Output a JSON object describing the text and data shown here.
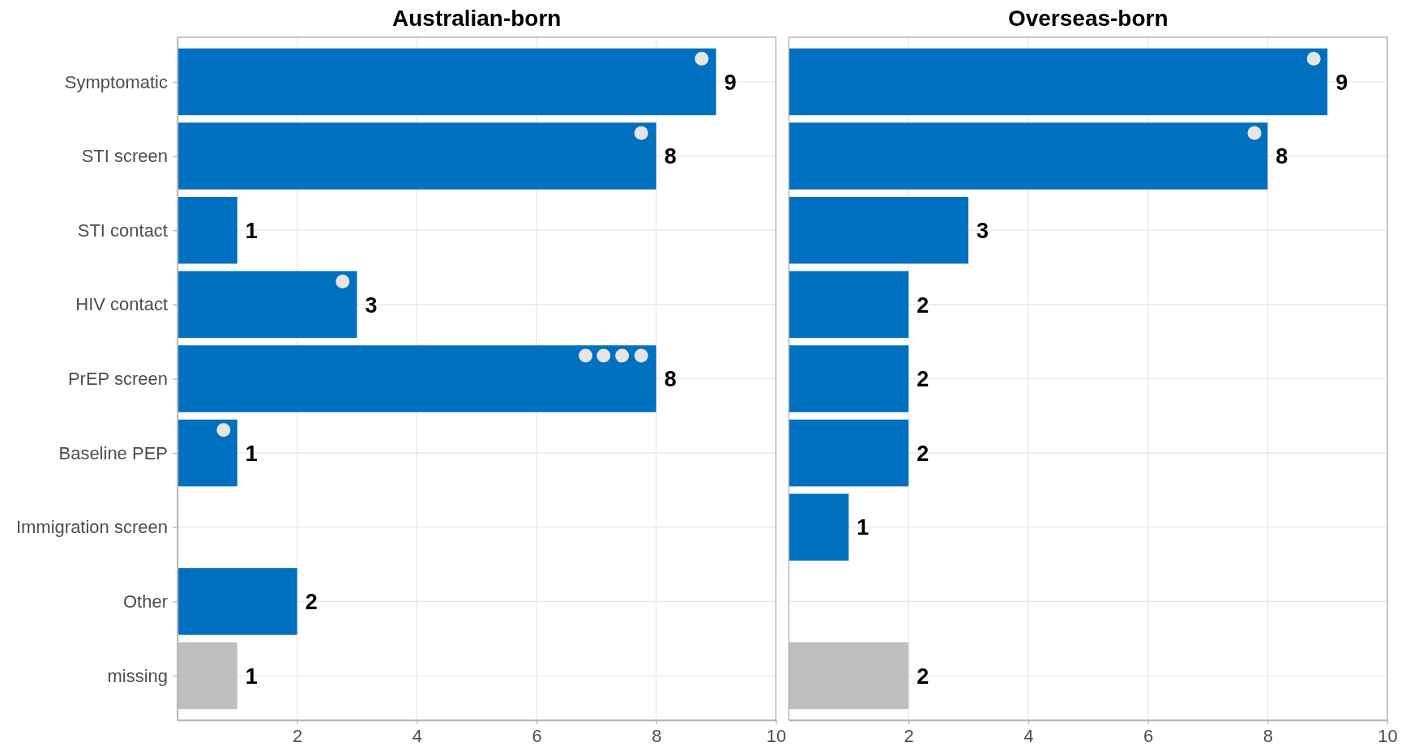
{
  "chart_data": [
    {
      "type": "bar",
      "orientation": "horizontal",
      "title": "Australian-born",
      "categories": [
        "Symptomatic",
        "STI screen",
        "STI contact",
        "HIV contact",
        "PrEP screen",
        "Baseline PEP",
        "Immigration screen",
        "Other",
        "missing"
      ],
      "series": [
        {
          "colors": [
            "#0070c0",
            "#0070c0",
            "#0070c0",
            "#0070c0",
            "#0070c0",
            "#0070c0",
            "#0070c0",
            "#0070c0",
            "#bfbfbf"
          ],
          "values": [
            9,
            8,
            1,
            3,
            8,
            1,
            null,
            2,
            1
          ],
          "value_labels": [
            "9",
            "8",
            "1",
            "3",
            "8",
            "1",
            null,
            "2",
            "1"
          ]
        },
        {
          "type": "scatter",
          "marker": "circle",
          "color": "#e5e5e5",
          "x": [
            "Symptomatic",
            "STI screen",
            "HIV contact",
            "PrEP screen",
            "PrEP screen",
            "PrEP screen",
            "PrEP screen",
            "Baseline PEP"
          ],
          "values": [
            8.76,
            7.75,
            2.76,
            6.82,
            7.12,
            7.43,
            7.75,
            0.77
          ]
        }
      ],
      "xlim": [
        0,
        10
      ],
      "xticks": [
        2,
        4,
        6,
        8,
        10
      ],
      "grid": true
    },
    {
      "type": "bar",
      "orientation": "horizontal",
      "title": "Overseas-born",
      "categories": [
        "Symptomatic",
        "STI screen",
        "STI contact",
        "HIV contact",
        "PrEP screen",
        "Baseline PEP",
        "Immigration screen",
        "Other",
        "missing"
      ],
      "series": [
        {
          "colors": [
            "#0070c0",
            "#0070c0",
            "#0070c0",
            "#0070c0",
            "#0070c0",
            "#0070c0",
            "#0070c0",
            "#0070c0",
            "#bfbfbf"
          ],
          "values": [
            9,
            8,
            3,
            2,
            2,
            2,
            1,
            null,
            2
          ],
          "value_labels": [
            "9",
            "8",
            "3",
            "2",
            "2",
            "2",
            "1",
            null,
            "2"
          ]
        },
        {
          "type": "scatter",
          "marker": "circle",
          "color": "#e5e5e5",
          "x": [
            "Symptomatic",
            "STI screen"
          ],
          "values": [
            8.77,
            7.78
          ]
        }
      ],
      "xlim": [
        0,
        10
      ],
      "xticks": [
        2,
        4,
        6,
        8,
        10
      ],
      "grid": true,
      "tick_labels": "x"
    }
  ]
}
